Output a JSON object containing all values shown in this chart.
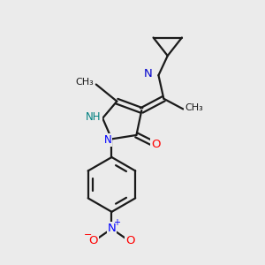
{
  "bg_color": "#ebebeb",
  "bond_color": "#1a1a1a",
  "bond_width": 1.6,
  "atom_colors": {
    "N": "#0000ff",
    "O": "#ff0000",
    "N_imine": "#0000cc",
    "NH": "#008080"
  },
  "font_size": 8.5,
  "fig_size": [
    3.0,
    3.0
  ],
  "dpi": 100
}
